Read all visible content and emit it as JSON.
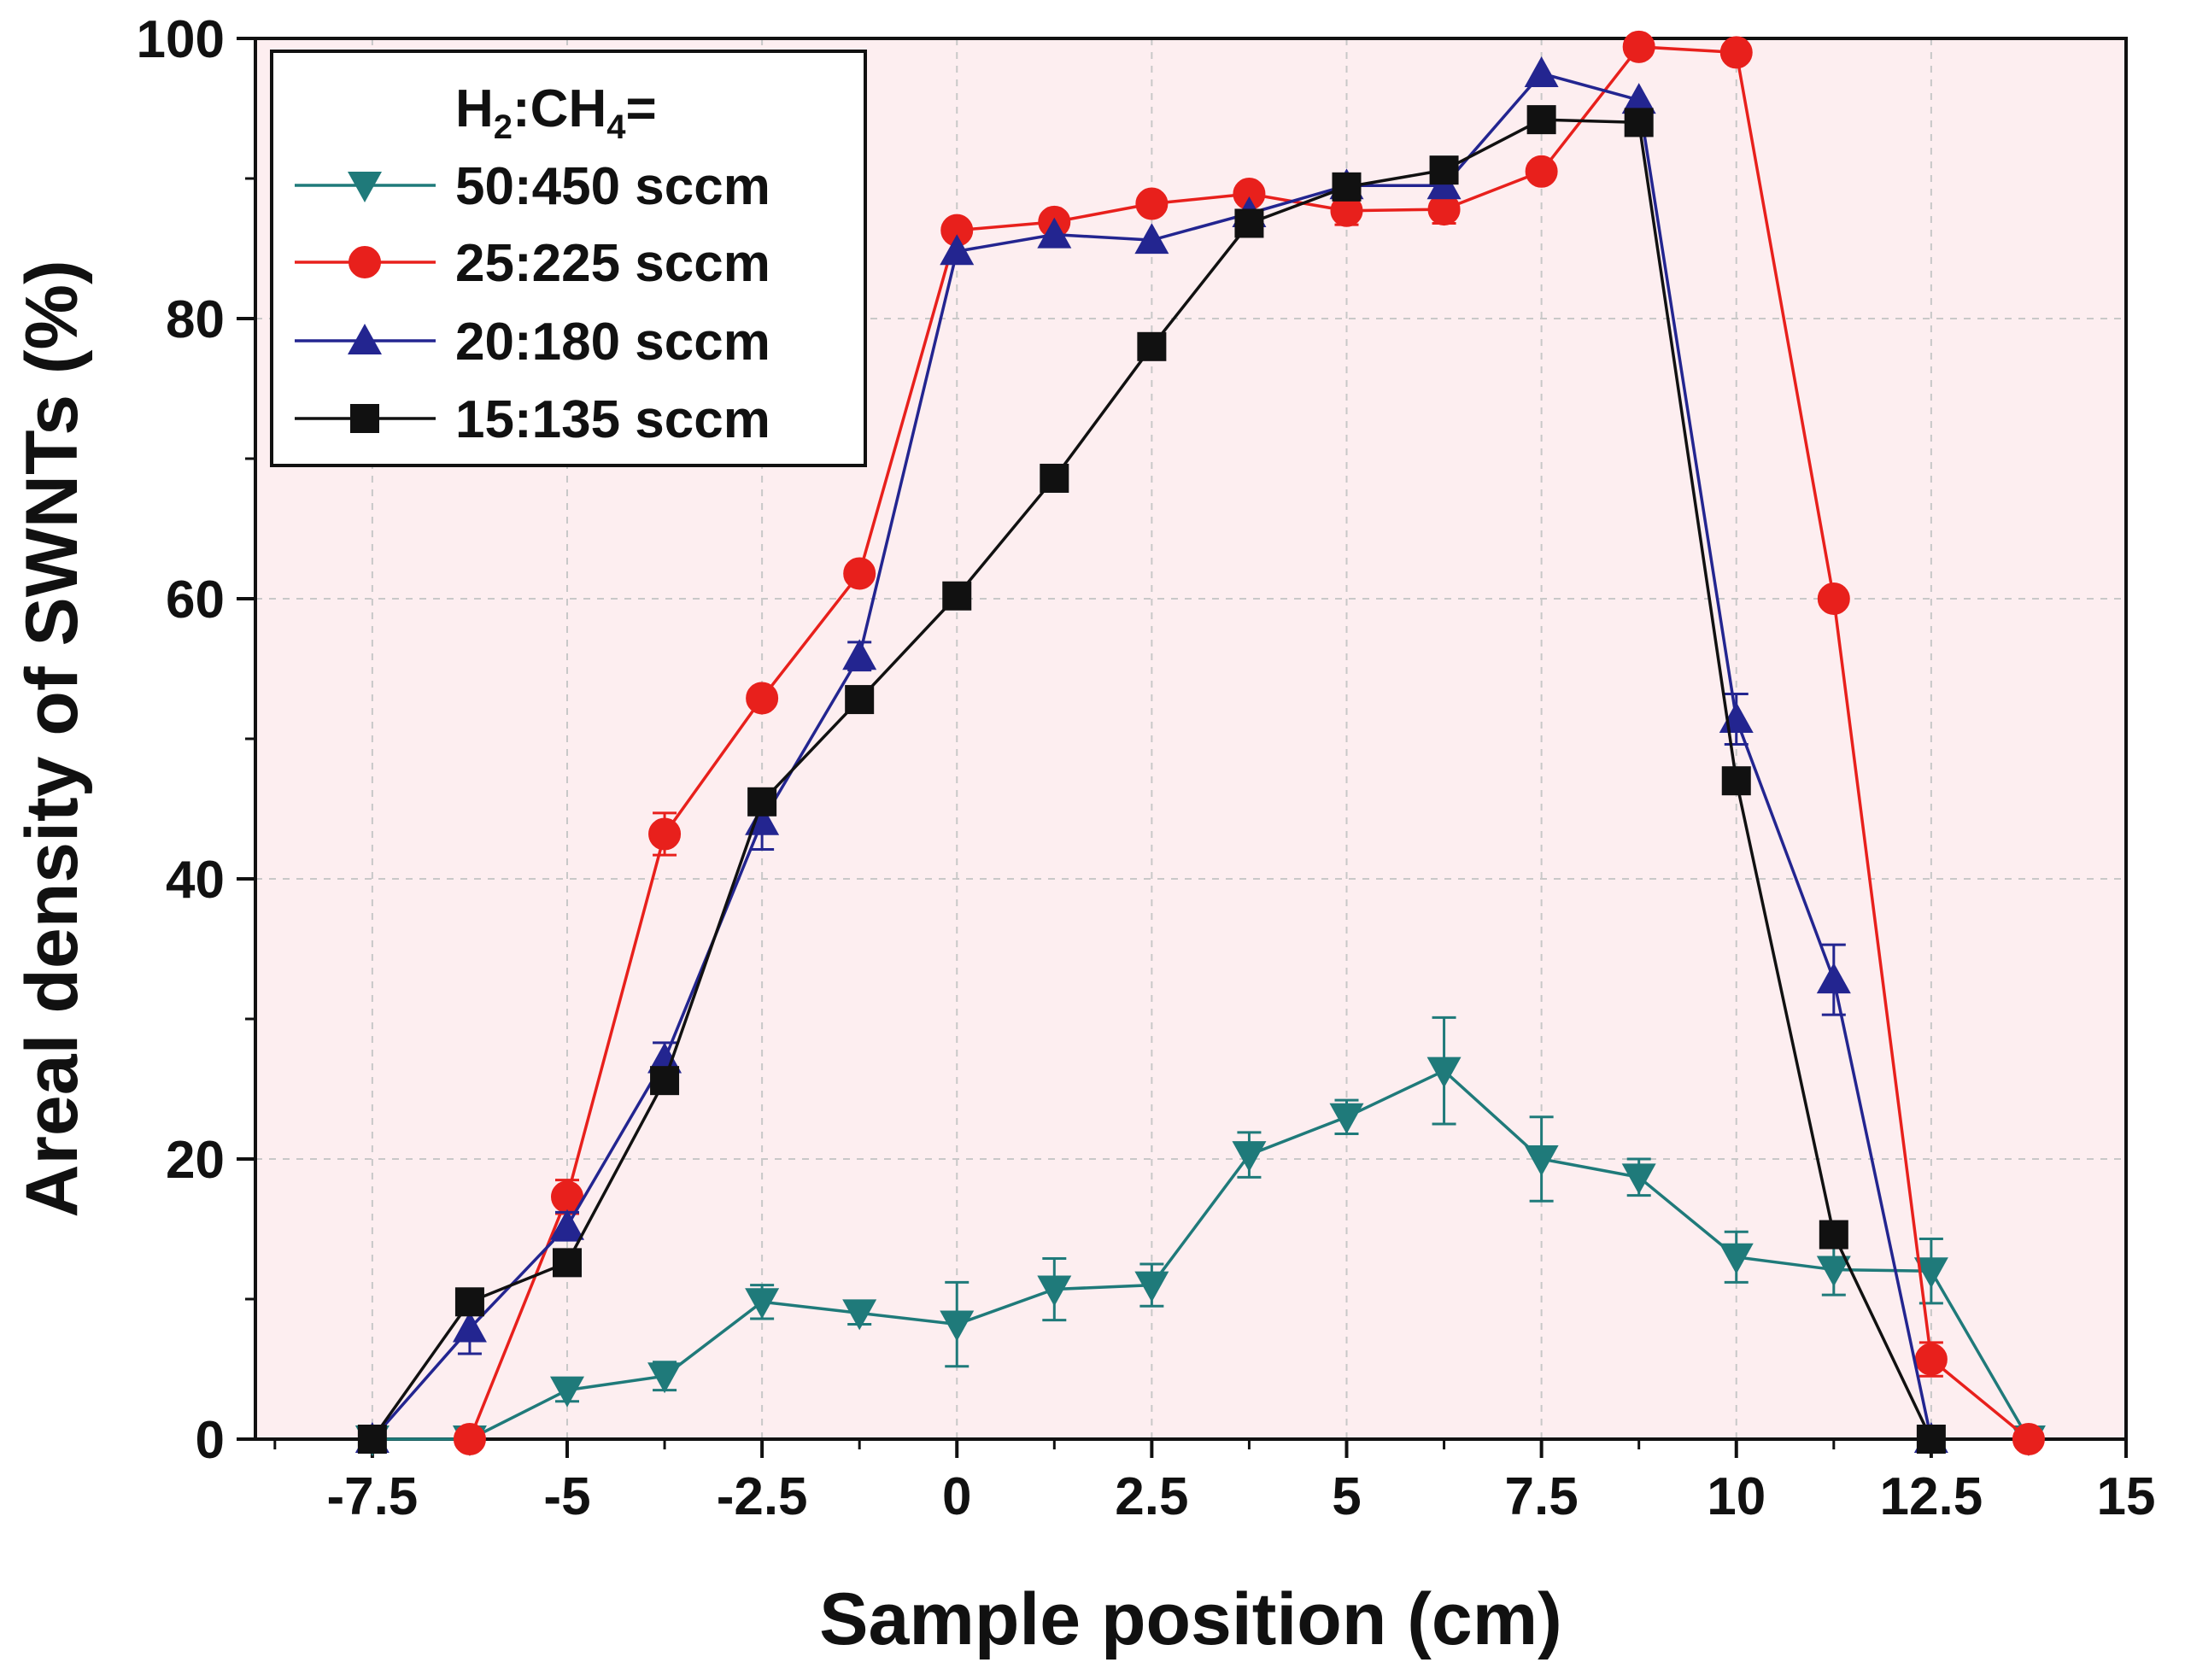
{
  "chart_data": {
    "type": "line",
    "title": "",
    "xlabel": "Sample position (cm)",
    "ylabel": "Areal density of SWNTs (%)",
    "xlim": [
      -9,
      15
    ],
    "ylim": [
      0,
      100
    ],
    "xticks": [
      -7.5,
      -5,
      -2.5,
      0,
      2.5,
      5,
      7.5,
      10,
      12.5,
      15
    ],
    "xtick_labels": [
      "-7.5",
      "-5",
      "-2.5",
      "0",
      "2.5",
      "5",
      "7.5",
      "10",
      "12.5",
      "15"
    ],
    "yticks": [
      0,
      20,
      40,
      60,
      80,
      100
    ],
    "ytick_labels": [
      "0",
      "20",
      "40",
      "60",
      "80",
      "100"
    ],
    "grid": true,
    "legend_title": {
      "h": "H",
      "h_sub": "2",
      "colon_ch": ":CH",
      "ch_sub": "4",
      "eq": "="
    },
    "legend_position": "top-left",
    "series": [
      {
        "name": "50:450 sccm",
        "color": "#1f7a7a",
        "marker": "triangle-down",
        "x": [
          -7.5,
          -6.25,
          -5,
          -3.75,
          -2.5,
          -1.25,
          0,
          1.25,
          2.5,
          3.75,
          5,
          6.25,
          7.5,
          8.75,
          10,
          11.25,
          12.5,
          13.75
        ],
        "values": [
          0,
          0,
          3.5,
          4.5,
          9.8,
          9,
          8.2,
          10.7,
          11,
          20.3,
          23,
          26.3,
          20,
          18.7,
          13,
          12.1,
          12,
          0
        ],
        "errors": [
          0,
          0,
          0.8,
          1,
          1.2,
          0.8,
          3,
          2.2,
          1.5,
          1.6,
          1.2,
          3.8,
          3,
          1.3,
          1.8,
          1.8,
          2.3,
          0
        ]
      },
      {
        "name": "25:225 sccm",
        "color": "#e8201c",
        "marker": "circle",
        "x": [
          -6.25,
          -5,
          -3.75,
          -2.5,
          -1.25,
          0,
          1.25,
          2.5,
          3.75,
          5,
          6.25,
          7.5,
          8.75,
          10,
          11.25,
          12.5,
          13.75
        ],
        "values": [
          0,
          17.3,
          43.2,
          52.9,
          61.8,
          86.3,
          86.9,
          88.2,
          88.9,
          87.7,
          87.8,
          90.5,
          99.4,
          99,
          60,
          5.7,
          0
        ],
        "errors": [
          0,
          1.2,
          1.5,
          0,
          0,
          0,
          0,
          0,
          0,
          1,
          1,
          0,
          0,
          0,
          0,
          1.2,
          0
        ]
      },
      {
        "name": "20:180 sccm",
        "color": "#232590",
        "marker": "triangle-up",
        "x": [
          -7.5,
          -6.25,
          -5,
          -3.75,
          -2.5,
          -1.25,
          0,
          1.25,
          2.5,
          3.75,
          5,
          6.25,
          7.5,
          8.75,
          10,
          11.25,
          12.5
        ],
        "values": [
          0,
          7.9,
          15.2,
          27.1,
          44.1,
          55.9,
          84.8,
          86,
          85.6,
          87.5,
          89.5,
          89.5,
          97.5,
          95.6,
          51.4,
          32.8,
          0
        ],
        "errors": [
          0,
          1.8,
          1,
          1.2,
          2,
          1,
          0,
          0,
          0,
          0,
          0,
          0.8,
          0,
          0,
          1.8,
          2.5,
          0
        ]
      },
      {
        "name": "15:135 sccm",
        "color": "#111111",
        "marker": "square",
        "x": [
          -7.5,
          -6.25,
          -5,
          -3.75,
          -2.5,
          -1.25,
          0,
          1.25,
          2.5,
          3.75,
          5,
          6.25,
          7.5,
          8.75,
          10,
          11.25,
          12.5
        ],
        "values": [
          0,
          9.8,
          12.6,
          25.6,
          45.5,
          52.8,
          60.2,
          68.6,
          78,
          86.8,
          89.4,
          90.6,
          94.2,
          94,
          47,
          14.6,
          0
        ],
        "errors": [
          0,
          0,
          0,
          0,
          0,
          0,
          0,
          0,
          0,
          0,
          0,
          0,
          0,
          0,
          0,
          0,
          0
        ]
      }
    ]
  }
}
